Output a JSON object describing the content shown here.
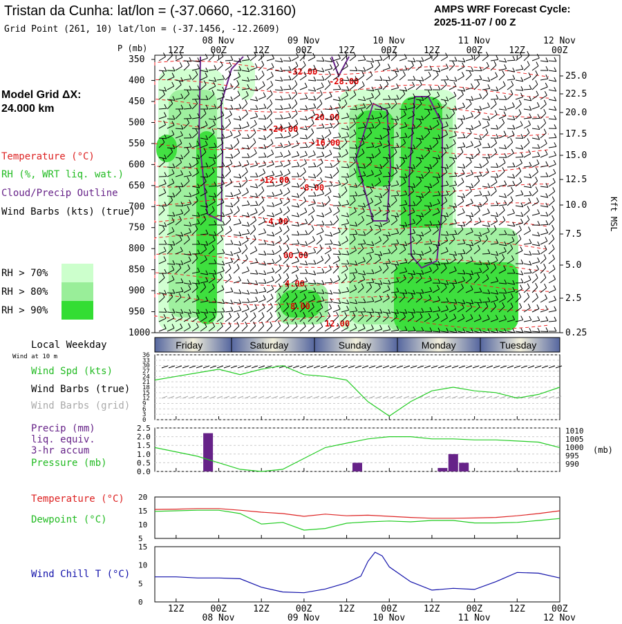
{
  "header": {
    "title": "Tristan da Cunha:  lat/lon = (-37.0660, -12.3160)",
    "subtitle": "Grid Point (261, 10) lat/lon = (-37.1456, -12.2609)",
    "cycle_label": "AMPS WRF Forecast Cycle:",
    "cycle_value": "2025-11-07 / 00  Z",
    "grid_label": "Model Grid ΔX:",
    "grid_value": " 24.000 km"
  },
  "legend": {
    "temperature": "Temperature (°C)",
    "rh": "RH (%, WRT liq. wat.)",
    "cloud": "Cloud/Precip Outline",
    "wind": "Wind Barbs (kts) (true)",
    "rh_bins": [
      {
        "label": "RH > 70%",
        "color": "#ccffcc"
      },
      {
        "label": "RH > 80%",
        "color": "#99ee99"
      },
      {
        "label": "RH > 90%",
        "color": "#33dd33"
      }
    ]
  },
  "time_axis": {
    "top_ticks": [
      "12Z",
      "00Z",
      "12Z",
      "00Z",
      "12Z",
      "00Z",
      "12Z",
      "00Z",
      "12Z",
      "00Z"
    ],
    "top_dates": [
      "08 Nov",
      "09 Nov",
      "10 Nov",
      "11 Nov",
      "12 Nov"
    ],
    "bottom_ticks": [
      "12Z",
      "00Z",
      "12Z",
      "00Z",
      "12Z",
      "00Z",
      "12Z",
      "00Z",
      "12Z",
      "00Z"
    ],
    "bottom_dates": [
      "08 Nov",
      "09 Nov",
      "10 Nov",
      "11 Nov",
      "12 Nov"
    ]
  },
  "weekday": {
    "label": "Local Weekday",
    "wind_note": "Wind at 10 m",
    "days": [
      "Friday",
      "Saturday",
      "Sunday",
      "Monday",
      "Tuesday"
    ]
  },
  "labels": {
    "p_axis": "P (mb)",
    "kft": "Kft MSL",
    "wind_spd": "Wind Spd (kts)",
    "wind_barbs_true": "Wind Barbs (true)",
    "wind_barbs_grid": "Wind Barbs (grid)",
    "precip1": "Precip (mm)",
    "precip2": "liq. equiv.",
    "precip3": "3-hr accum",
    "pressure": "Pressure (mb)",
    "pressure_unit": "(mb)",
    "temperature": "Temperature (°C)",
    "dewpoint": "Dewpoint (°C)",
    "windchill": "Wind Chill T (°C)"
  },
  "chart_data": [
    {
      "type": "heatmap",
      "name": "cross-section",
      "x_unit": "forecast hour",
      "xlim": [
        6,
        120
      ],
      "yaxis_ticks": [
        350,
        400,
        450,
        500,
        550,
        600,
        650,
        700,
        750,
        800,
        850,
        900,
        950,
        1000
      ],
      "right_ticks": [
        "25.0",
        "22.5",
        "20.0",
        "17.5",
        "15.0",
        "12.5",
        "10.0",
        "7.5",
        "5.0",
        "2.5",
        "0.25"
      ],
      "temp_labels": [
        "-32.00",
        "-28.00",
        "-24.00",
        "-20.00",
        "-16.00",
        "-12.00",
        "-8.00",
        "-4.00",
        "00.00",
        "4.00",
        "8.00",
        "12.00"
      ]
    },
    {
      "type": "line",
      "name": "wind",
      "x_unit": "forecast hour",
      "ylim": [
        0,
        36
      ],
      "yticks": [
        0,
        3,
        6,
        9,
        12,
        15,
        18,
        21,
        24,
        27,
        30,
        33,
        36
      ],
      "series": [
        {
          "name": "Wind Spd (kts)",
          "color": "#22cc22",
          "x": [
            6,
            12,
            18,
            24,
            30,
            36,
            42,
            48,
            54,
            60,
            66,
            72,
            78,
            84,
            90,
            96,
            102,
            108,
            114,
            120
          ],
          "y": [
            22,
            24,
            26,
            28,
            25,
            28,
            30,
            25,
            24,
            22,
            10,
            2,
            10,
            16,
            18,
            16,
            15,
            12,
            14,
            18
          ]
        }
      ]
    },
    {
      "type": "bar+line",
      "name": "precip-pressure",
      "x_unit": "forecast hour",
      "ylim_left": [
        0,
        2.5
      ],
      "yticks_left": [
        "0.0",
        "0.5",
        "1.0",
        "1.5",
        "2.0",
        "2.5"
      ],
      "ylim_right": [
        990,
        1010
      ],
      "yticks_right": [
        "1010",
        "1005",
        "1000",
        "995",
        "990"
      ],
      "precip_color": "#662288",
      "precip": {
        "x": [
          21,
          63,
          87,
          90,
          93
        ],
        "values": [
          2.2,
          0.5,
          0.2,
          1.0,
          0.5
        ]
      },
      "pressure": {
        "name": "Pressure (mb)",
        "color": "#22cc22",
        "x": [
          6,
          12,
          18,
          24,
          30,
          36,
          42,
          48,
          54,
          60,
          66,
          72,
          78,
          84,
          90,
          96,
          102,
          108,
          114,
          120
        ],
        "y": [
          1001,
          999,
          997,
          994,
          991,
          990,
          991,
          996,
          1001,
          1003,
          1005,
          1006,
          1006,
          1005,
          1005,
          1004.5,
          1004.5,
          1004,
          1003.5,
          1001
        ]
      }
    },
    {
      "type": "line",
      "name": "temp-dew",
      "x_unit": "forecast hour",
      "ylim": [
        5,
        20
      ],
      "yticks": [
        5,
        10,
        15,
        20
      ],
      "series": [
        {
          "name": "Temperature (°C)",
          "color": "#dd2222",
          "x": [
            6,
            12,
            18,
            24,
            30,
            36,
            42,
            48,
            54,
            60,
            66,
            72,
            78,
            84,
            90,
            96,
            102,
            108,
            114,
            120
          ],
          "y": [
            15.5,
            15.6,
            15.8,
            15.8,
            15.2,
            14.5,
            14,
            13,
            13.8,
            13.2,
            13.4,
            13,
            12.6,
            12.3,
            12.3,
            12.4,
            12.6,
            13.2,
            14,
            15
          ]
        },
        {
          "name": "Dewpoint (°C)",
          "color": "#22cc22",
          "x": [
            6,
            12,
            18,
            24,
            30,
            36,
            42,
            48,
            54,
            60,
            66,
            72,
            78,
            84,
            90,
            96,
            102,
            108,
            114,
            120
          ],
          "y": [
            14.8,
            15,
            15.2,
            15.2,
            14,
            10.2,
            10.8,
            8,
            8.6,
            10.5,
            11,
            11.3,
            11,
            11.5,
            11.5,
            10.6,
            10.6,
            10.8,
            11.5,
            12.2
          ]
        }
      ]
    },
    {
      "type": "line",
      "name": "windchill",
      "x_unit": "forecast hour",
      "ylim": [
        0,
        15
      ],
      "yticks": [
        0,
        5,
        10,
        15
      ],
      "series": [
        {
          "name": "Wind Chill T (°C)",
          "color": "#1111aa",
          "x": [
            6,
            12,
            18,
            24,
            30,
            36,
            42,
            48,
            54,
            60,
            64,
            66,
            68,
            70,
            72,
            78,
            84,
            90,
            96,
            102,
            108,
            114,
            120
          ],
          "y": [
            6.8,
            6.8,
            6.5,
            6.5,
            6.3,
            4.0,
            2.7,
            2.5,
            3.5,
            5.2,
            7.0,
            11,
            13.5,
            12.5,
            9.5,
            5.5,
            3.2,
            3.7,
            3.4,
            5.5,
            8,
            7.8,
            6.5
          ]
        }
      ]
    }
  ]
}
